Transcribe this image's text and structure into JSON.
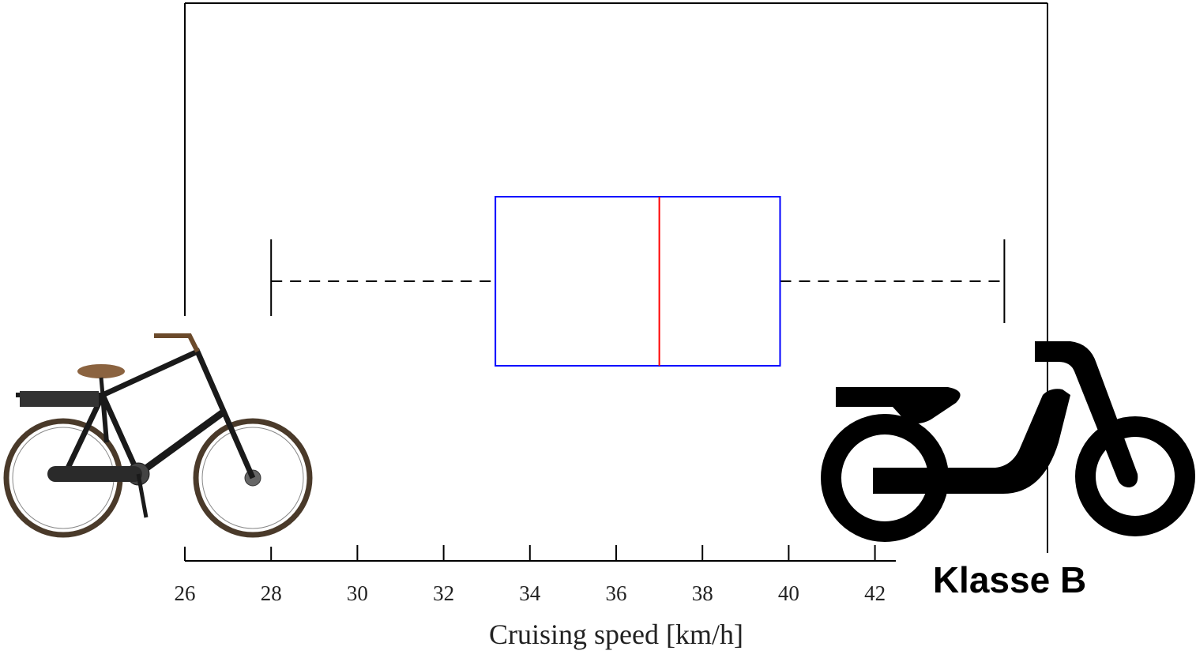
{
  "chart_data": {
    "type": "box",
    "xlabel": "Cruising speed [km/h]",
    "xlim": [
      26,
      46
    ],
    "xticks": [
      26,
      28,
      30,
      32,
      34,
      36,
      38,
      40,
      42
    ],
    "series": [
      {
        "whislo": 28,
        "q1": 33.2,
        "med": 37,
        "q3": 39.8,
        "whishi": 45,
        "box_color": "#0000ff",
        "median_color": "#ff0000",
        "whisker_color": "#000000"
      }
    ],
    "annotation": "Klasse B"
  }
}
